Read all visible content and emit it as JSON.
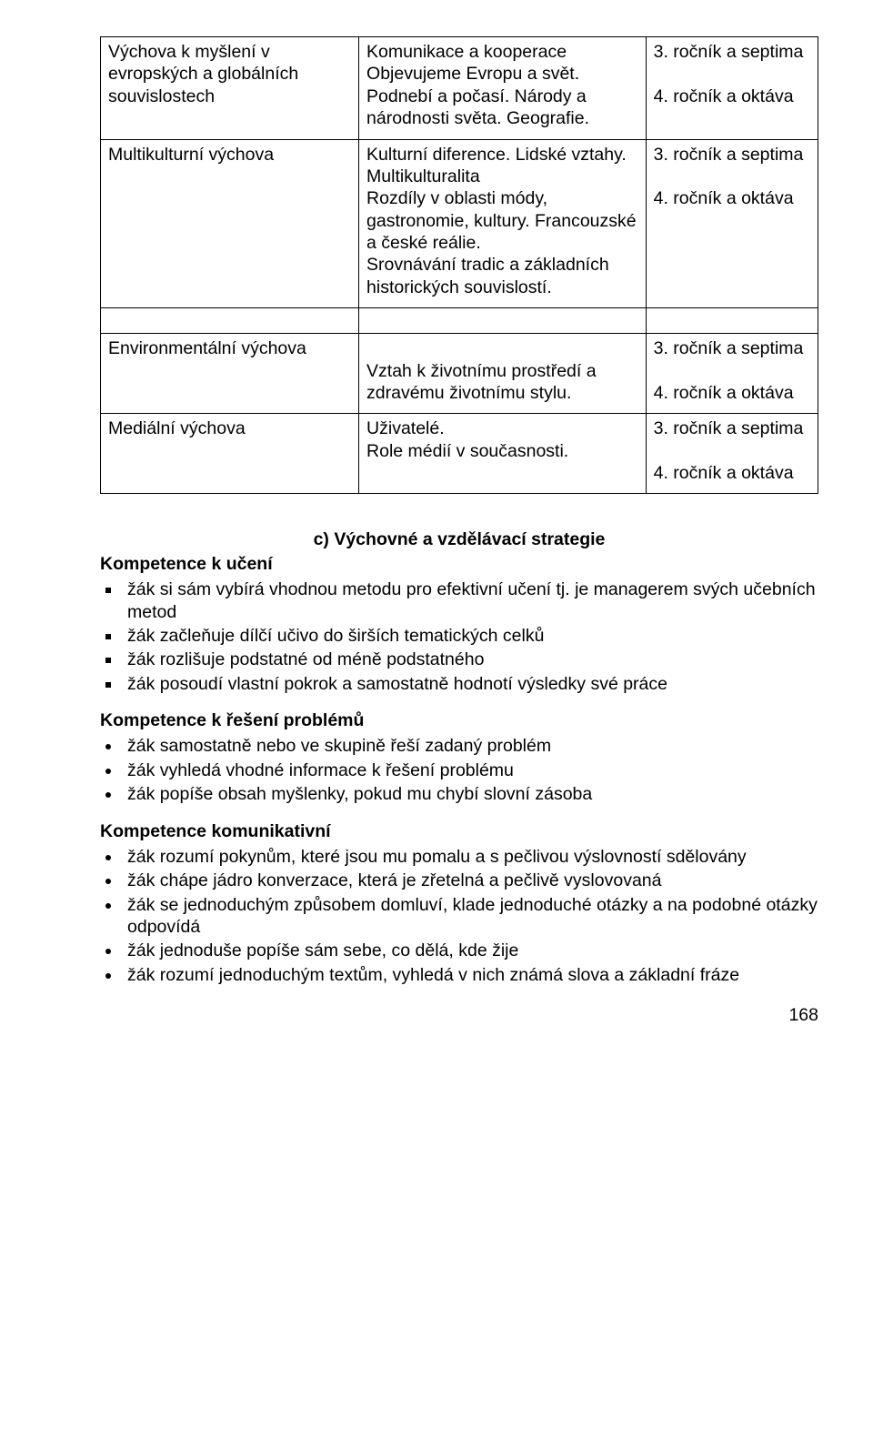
{
  "table": {
    "rows": [
      {
        "col1": "Výchova k myšlení v evropských a globálních souvislostech",
        "col2": "Komunikace a kooperace\nObjevujeme Evropu a svět. Podnebí a počasí. Národy a národnosti světa. Geografie.",
        "col3": "3. ročník a septima\n\n4. ročník a oktáva"
      },
      {
        "col1": "Multikulturní výchova",
        "col2": "Kulturní diference. Lidské vztahy. Multikulturalita\nRozdíly v oblasti módy, gastronomie, kultury. Francouzské a české reálie.\nSrovnávání tradic a základních historických souvislostí.",
        "col3": "3. ročník a septima\n\n4. ročník a oktáva"
      },
      {
        "spacer": true
      },
      {
        "col1": "Environmentální výchova",
        "col2": "\nVztah  k životnímu prostředí a zdravému životnímu stylu.",
        "col3": "3. ročník a septima\n\n4. ročník a oktáva"
      },
      {
        "col1": "Mediální výchova",
        "col2": "Uživatelé.\nRole médií v současnosti.",
        "col3": "3. ročník a septima\n\n4. ročník a oktáva"
      }
    ]
  },
  "strategies_heading": "c) Výchovné a vzdělávací strategie",
  "sections": [
    {
      "title": "Kompetence k učení",
      "marker": "square",
      "items": [
        "žák si sám vybírá vhodnou metodu pro efektivní učení tj. je managerem svých učebních metod",
        "žák začleňuje dílčí učivo do širších tematických celků",
        "žák rozlišuje podstatné od méně podstatného",
        "žák posoudí vlastní pokrok a samostatně hodnotí výsledky své práce"
      ]
    },
    {
      "title": "Kompetence k řešení problémů",
      "marker": "disc",
      "items": [
        "žák samostatně nebo ve skupině řeší zadaný problém",
        "žák vyhledá vhodné informace k řešení problému",
        "žák popíše obsah myšlenky, pokud mu chybí slovní zásoba"
      ]
    },
    {
      "title": "Kompetence komunikativní",
      "marker": "disc",
      "items": [
        "žák rozumí pokynům, které jsou mu pomalu a s pečlivou výslovností sdělovány",
        "žák chápe jádro konverzace, která je zřetelná a pečlivě vyslovovaná",
        "žák se jednoduchým způsobem domluví, klade jednoduché otázky a na podobné otázky odpovídá",
        "žák jednoduše popíše sám sebe, co dělá, kde žije",
        "žák rozumí jednoduchým textům, vyhledá v nich známá slova a základní fráze"
      ]
    }
  ],
  "page_number": "168"
}
